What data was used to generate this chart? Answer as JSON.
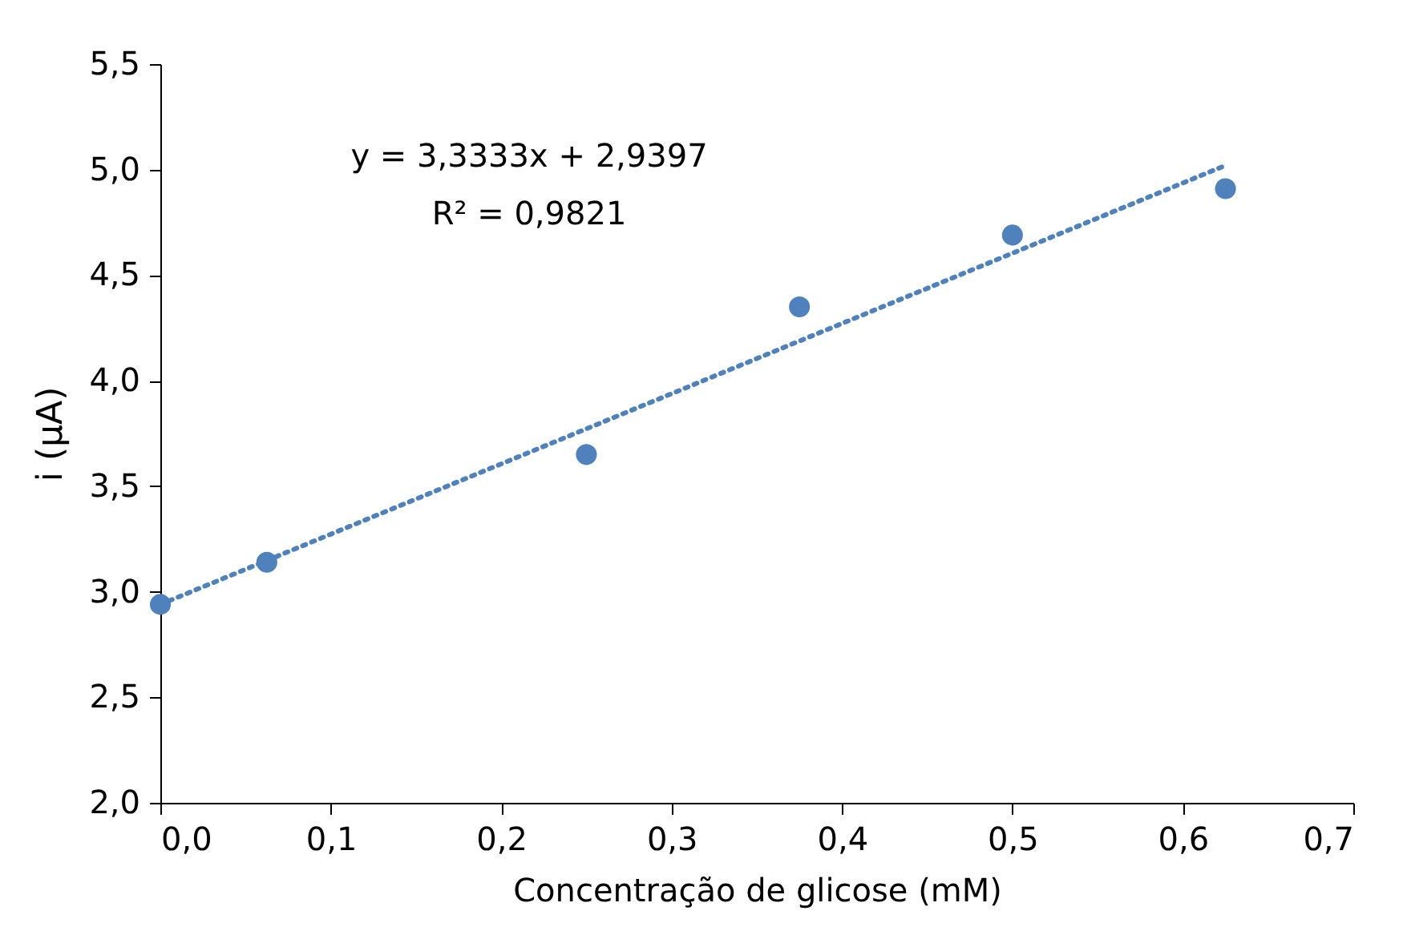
{
  "chart_data": {
    "type": "scatter",
    "xlabel": "Concentração de glicose (mM)",
    "ylabel": "i (µA)",
    "xlim": [
      0,
      0.7
    ],
    "xticks": [
      {
        "value": 0,
        "label": "0,0"
      },
      {
        "value": 0.1,
        "label": "0,1"
      },
      {
        "value": 0.2,
        "label": "0,2"
      },
      {
        "value": 0.3,
        "label": "0,3"
      },
      {
        "value": 0.4,
        "label": "0,4"
      },
      {
        "value": 0.5,
        "label": "0,5"
      },
      {
        "value": 0.6,
        "label": "0,6"
      },
      {
        "value": 0.7,
        "label": "0,7"
      }
    ],
    "ylim": [
      2.0,
      5.5
    ],
    "yticks": [
      {
        "value": 2.0,
        "label": "2,0"
      },
      {
        "value": 2.5,
        "label": "2,5"
      },
      {
        "value": 3.0,
        "label": "3,0"
      },
      {
        "value": 3.5,
        "label": "3,5"
      },
      {
        "value": 4.0,
        "label": "4,0"
      },
      {
        "value": 4.5,
        "label": "4,5"
      },
      {
        "value": 5.0,
        "label": "5,0"
      },
      {
        "value": 5.5,
        "label": "5,5"
      }
    ],
    "grid": false,
    "series": [
      {
        "type": "scatter",
        "marker": "circle",
        "color": "#4f81bd",
        "x": [
          0,
          0.0625,
          0.25,
          0.375,
          0.5,
          0.625
        ],
        "values": [
          2.94,
          3.14,
          3.65,
          4.35,
          4.69,
          4.91
        ]
      },
      {
        "type": "line",
        "color": "#4f81bd",
        "line_style": "dotted",
        "x": [
          0,
          0.625
        ],
        "values": [
          2.94,
          5.02
        ]
      }
    ],
    "annotations": [
      "y = 3,3333x + 2,9397",
      "R² = 0,9821"
    ]
  }
}
